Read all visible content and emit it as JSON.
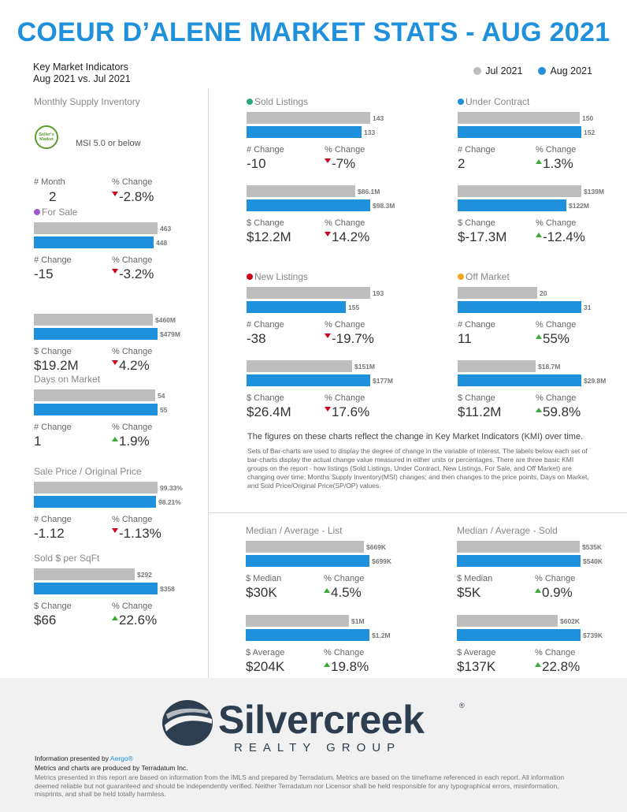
{
  "title": "COEUR D’ALENE MARKET STATS - AUG 2021",
  "header": {
    "line1": "Key Market Indicators",
    "line2": "Aug 2021 vs. Jul 2021"
  },
  "legend": [
    {
      "label": "Jul 2021",
      "color": "#bdbdbd"
    },
    {
      "label": "Aug 2021",
      "color": "#1e90dc"
    }
  ],
  "msi": {
    "title": "Monthly Supply Inventory",
    "seal": "Seller's Market",
    "text": "MSI 5.0 or below",
    "label1": "# Month",
    "val1": "2",
    "label2": "% Change",
    "val2": "-2.8%",
    "dir2": "down"
  },
  "panels": [
    {
      "title": "For Sale",
      "dot": "#9b59d0",
      "bars": [
        {
          "jul": "463",
          "aug": "448",
          "julV": 463,
          "augV": 448
        }
      ],
      "stats": [
        {
          "l1": "# Change",
          "v1": "-15",
          "l2": "% Change",
          "v2": "-3.2%",
          "dir": "down"
        }
      ]
    },
    {
      "title": "",
      "dot": "",
      "bars": [
        {
          "jul": "$460M",
          "aug": "$479M",
          "julV": 460,
          "augV": 479
        }
      ],
      "stats": [
        {
          "l1": "$ Change",
          "v1": "$19.2M",
          "l2": "% Change",
          "v2": "4.2%",
          "dir": "down"
        }
      ]
    },
    {
      "title": "Days on Market",
      "dot": "",
      "bars": [
        {
          "jul": "54",
          "aug": "55",
          "julV": 54,
          "augV": 55
        }
      ],
      "stats": [
        {
          "l1": "# Change",
          "v1": "1",
          "l2": "% Change",
          "v2": "1.9%",
          "dir": "up"
        }
      ]
    },
    {
      "title": "Sale Price / Original Price",
      "dot": "",
      "bars": [
        {
          "jul": "99.33%",
          "aug": "98.21%",
          "julV": 99.33,
          "augV": 98.21
        }
      ],
      "stats": [
        {
          "l1": "# Change",
          "v1": "-1.12",
          "l2": "% Change",
          "v2": "-1.13%",
          "dir": "down"
        }
      ]
    },
    {
      "title": "Sold $ per SqFt",
      "dot": "",
      "bars": [
        {
          "jul": "$292",
          "aug": "$358",
          "julV": 292,
          "augV": 358
        }
      ],
      "stats": [
        {
          "l1": "$ Change",
          "v1": "$66",
          "l2": "% Change",
          "v2": "22.6%",
          "dir": "up"
        }
      ]
    },
    {
      "title": "Sold Listings",
      "dot": "#2aa87a",
      "bars": [
        {
          "jul": "143",
          "aug": "133",
          "julV": 143,
          "augV": 133
        }
      ],
      "stats": [
        {
          "l1": "# Change",
          "v1": "-10",
          "l2": "% Change",
          "v2": "-7%",
          "dir": "down"
        }
      ]
    },
    {
      "title": "",
      "dot": "",
      "bars": [
        {
          "jul": "$86.1M",
          "aug": "$98.3M",
          "julV": 86.1,
          "augV": 98.3
        }
      ],
      "stats": [
        {
          "l1": "$ Change",
          "v1": "$12.2M",
          "l2": "% Change",
          "v2": "14.2%",
          "dir": "down"
        }
      ]
    },
    {
      "title": "Under Contract",
      "dot": "#1e90dc",
      "bars": [
        {
          "jul": "150",
          "aug": "152",
          "julV": 150,
          "augV": 152
        }
      ],
      "stats": [
        {
          "l1": "# Change",
          "v1": "2",
          "l2": "% Change",
          "v2": "1.3%",
          "dir": "up"
        }
      ]
    },
    {
      "title": "",
      "dot": "",
      "bars": [
        {
          "jul": "$139M",
          "aug": "$122M",
          "julV": 139,
          "augV": 122
        }
      ],
      "stats": [
        {
          "l1": "$ Change",
          "v1": "$-17.3M",
          "l2": "% Change",
          "v2": "-12.4%",
          "dir": "up"
        }
      ]
    },
    {
      "title": "New Listings",
      "dot": "#d0021b",
      "bars": [
        {
          "jul": "193",
          "aug": "155",
          "julV": 193,
          "augV": 155
        }
      ],
      "stats": [
        {
          "l1": "# Change",
          "v1": "-38",
          "l2": "% Change",
          "v2": "-19.7%",
          "dir": "down"
        }
      ]
    },
    {
      "title": "",
      "dot": "",
      "bars": [
        {
          "jul": "$151M",
          "aug": "$177M",
          "julV": 151,
          "augV": 177
        }
      ],
      "stats": [
        {
          "l1": "$ Change",
          "v1": "$26.4M",
          "l2": "% Change",
          "v2": "17.6%",
          "dir": "down"
        }
      ]
    },
    {
      "title": "Off Market",
      "dot": "#f5a623",
      "bars": [
        {
          "jul": "20",
          "aug": "31",
          "julV": 20,
          "augV": 31
        }
      ],
      "stats": [
        {
          "l1": "# Change",
          "v1": "11",
          "l2": "% Change",
          "v2": "55%",
          "dir": "up"
        }
      ]
    },
    {
      "title": "",
      "dot": "",
      "bars": [
        {
          "jul": "$18.7M",
          "aug": "$29.8M",
          "julV": 18.7,
          "augV": 29.8
        }
      ],
      "stats": [
        {
          "l1": "$ Change",
          "v1": "$11.2M",
          "l2": "% Change",
          "v2": "59.8%",
          "dir": "up"
        }
      ]
    },
    {
      "title": "Median / Average - List",
      "dot": "",
      "bars": [
        {
          "jul": "$669K",
          "aug": "$699K",
          "julV": 669,
          "augV": 699
        }
      ],
      "stats": [
        {
          "l1": "$ Median",
          "v1": "$30K",
          "l2": "% Change",
          "v2": "4.5%",
          "dir": "up"
        }
      ]
    },
    {
      "title": "",
      "dot": "",
      "bars": [
        {
          "jul": "$1M",
          "aug": "$1.2M",
          "julV": 1000,
          "augV": 1200
        }
      ],
      "stats": [
        {
          "l1": "$ Average",
          "v1": "$204K",
          "l2": "% Change",
          "v2": "19.8%",
          "dir": "up"
        }
      ]
    },
    {
      "title": "Median / Average - Sold",
      "dot": "",
      "bars": [
        {
          "jul": "$535K",
          "aug": "$540K",
          "julV": 535,
          "augV": 540
        }
      ],
      "stats": [
        {
          "l1": "$ Median",
          "v1": "$5K",
          "l2": "% Change",
          "v2": "0.9%",
          "dir": "up"
        }
      ]
    },
    {
      "title": "",
      "dot": "",
      "bars": [
        {
          "jul": "$602K",
          "aug": "$739K",
          "julV": 602,
          "augV": 739
        }
      ],
      "stats": [
        {
          "l1": "$ Average",
          "v1": "$137K",
          "l2": "% Change",
          "v2": "22.8%",
          "dir": "up"
        }
      ]
    }
  ],
  "explain": {
    "title": "The figures on these charts reflect the change in Key Market Indicators (KMI) over time.",
    "body": "Sets of Bar-charts are used to display the degree of change in the variable of interest. The labels below each set of bar-charts display the actual change value measured in either units or percentages. There are three basic KMI groups on the report - how listings (Sold Listings, Under Contract, New Listings, For Sale, and Off Market) are changing over time; Months Supply Inventory(MSI) changes; and then changes to the price points, Days on Market, and Sold Price/Original Price(SP/OP) values."
  },
  "footer": {
    "logo": "Silvercreek",
    "logo_sub": "REALTY GROUP",
    "presented_prefix": "Information presented by ",
    "presented_link": "Aergo®",
    "produced": "Metrics and charts are produced by Terradatum Inc.",
    "disclaimer": "Metrics presented in this report are based on information from the IMLS and prepared by Terradatum. Metrics are based on the timeframe referenced in each report. All information deemed reliable but not guaranteed and should be independently verified. Neither Terradatum nor Licensor shall be held responsible for any typographical errors, misinformation, misprints, and shall be held totally harmless."
  }
}
